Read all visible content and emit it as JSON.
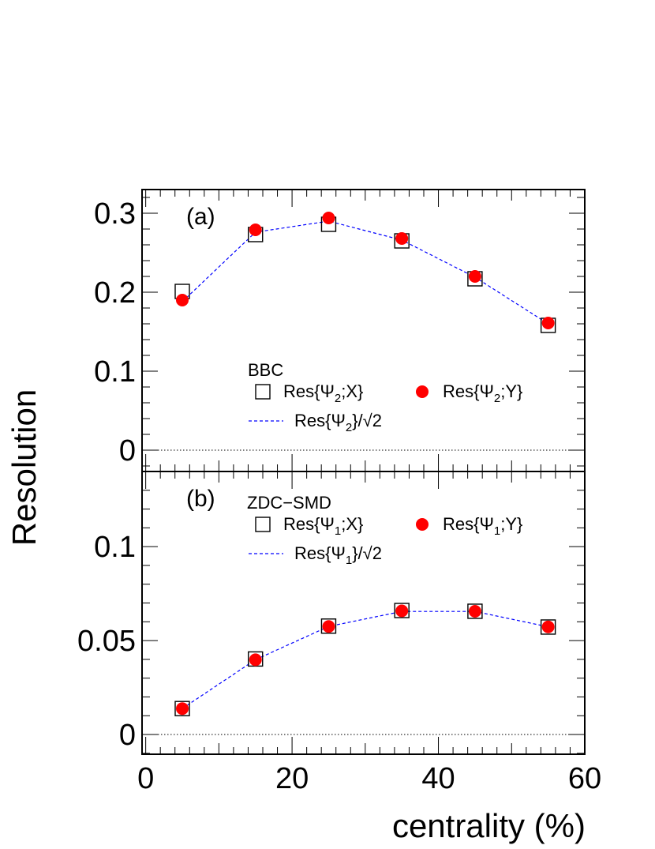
{
  "figure": {
    "ylabel": "Resolution",
    "xlabel": "centrality (%)",
    "xlim": [
      -0.5,
      60
    ],
    "x_ticks": [
      0,
      20,
      40,
      60
    ],
    "x_tick_labels": [
      "0",
      "20",
      "40",
      "60"
    ],
    "colors": {
      "marker_fill": "#ff0000",
      "fit_line": "#0000ff",
      "frame": "#000000",
      "zero_line": "#000000"
    }
  },
  "chart_data": [
    {
      "type": "scatter",
      "panel_label": "(a)",
      "legend_title": "BBC",
      "x": [
        5,
        15,
        25,
        35,
        45,
        55
      ],
      "ylim": [
        -0.027,
        0.33
      ],
      "y_ticks": [
        0,
        0.1,
        0.2,
        0.3
      ],
      "y_tick_labels": [
        "0",
        "0.1",
        "0.2",
        "0.3"
      ],
      "zero_line": true,
      "series": [
        {
          "name": "Res{Ψ2;X}",
          "legend_main": "Res{Ψ",
          "legend_sub": "2",
          "legend_tail": ";X}",
          "marker": "open-square",
          "values": [
            0.201,
            0.273,
            0.286,
            0.265,
            0.217,
            0.158
          ]
        },
        {
          "name": "Res{Ψ2;Y}",
          "legend_main": "Res{Ψ",
          "legend_sub": "2",
          "legend_tail": ";Y}",
          "marker": "filled-circle",
          "values": [
            0.19,
            0.279,
            0.294,
            0.268,
            0.22,
            0.161
          ]
        },
        {
          "name": "Res{Ψ2}/√2",
          "legend_main": "Res{Ψ",
          "legend_sub": "2",
          "legend_tail": "}/√2",
          "marker": "dashed-line",
          "values": [
            0.188,
            0.276,
            0.29,
            0.266,
            0.219,
            0.16
          ]
        }
      ]
    },
    {
      "type": "scatter",
      "panel_label": "(b)",
      "legend_title": "ZDC−SMD",
      "x": [
        5,
        15,
        25,
        35,
        45,
        55
      ],
      "ylim": [
        -0.0105,
        0.14
      ],
      "y_ticks": [
        0,
        0.05,
        0.1
      ],
      "y_tick_labels": [
        "0",
        "0.05",
        "0.1"
      ],
      "zero_line": true,
      "series": [
        {
          "name": "Res{Ψ1;X}",
          "legend_main": "Res{Ψ",
          "legend_sub": "1",
          "legend_tail": ";X}",
          "marker": "open-square",
          "values": [
            0.0138,
            0.0402,
            0.0577,
            0.066,
            0.0656,
            0.0572
          ]
        },
        {
          "name": "Res{Ψ1;Y}",
          "legend_main": "Res{Ψ",
          "legend_sub": "1",
          "legend_tail": ";Y}",
          "marker": "filled-circle",
          "values": [
            0.0138,
            0.0398,
            0.0575,
            0.0658,
            0.0656,
            0.0573
          ]
        },
        {
          "name": "Res{Ψ1}/√2",
          "legend_main": "Res{Ψ",
          "legend_sub": "1",
          "legend_tail": "}/√2",
          "marker": "dashed-line",
          "values": [
            0.0138,
            0.0398,
            0.0575,
            0.0655,
            0.0655,
            0.0573
          ]
        }
      ]
    }
  ]
}
